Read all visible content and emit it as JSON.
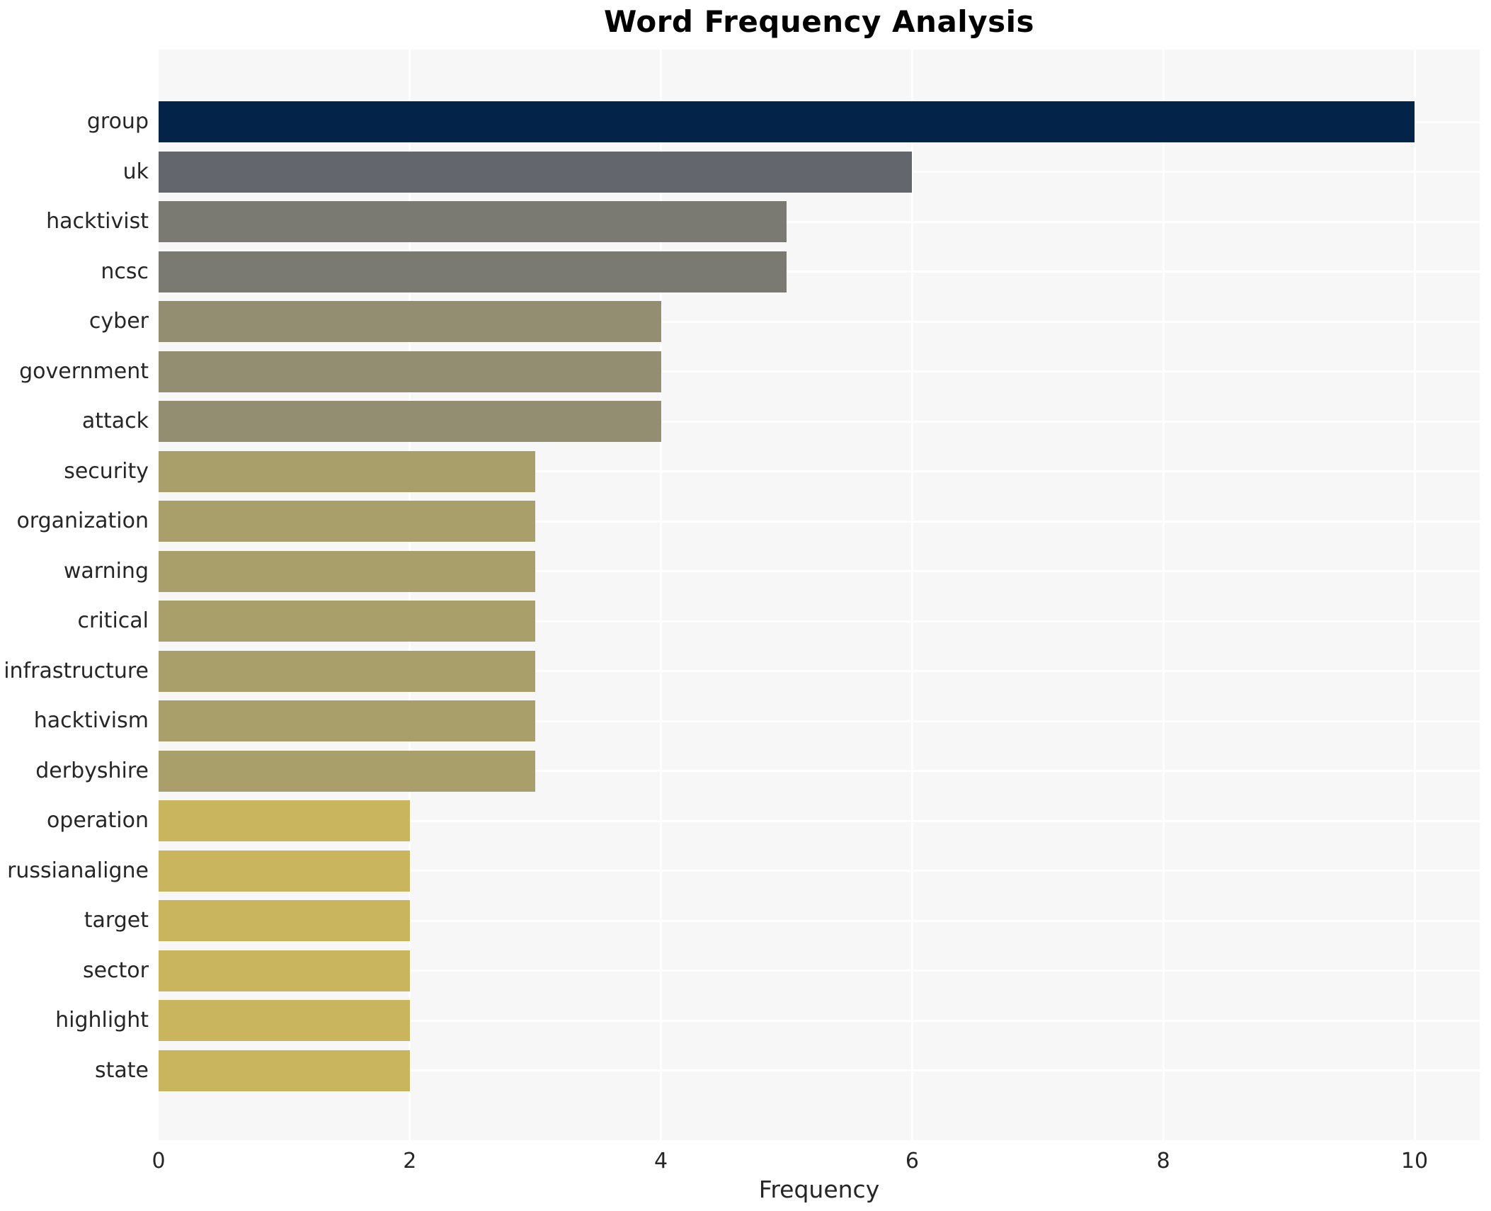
{
  "chart_data": {
    "type": "bar",
    "orientation": "horizontal",
    "title": "Word Frequency Analysis",
    "xlabel": "Frequency",
    "ylabel": "",
    "xlim": [
      0,
      10.52
    ],
    "xticks": [
      0,
      2,
      4,
      6,
      8,
      10
    ],
    "grid": "on",
    "legend": "none",
    "plot_background": "#f7f7f8",
    "grid_color": "#ffffff",
    "categories": [
      "group",
      "uk",
      "hacktivist",
      "ncsc",
      "cyber",
      "government",
      "attack",
      "security",
      "organization",
      "warning",
      "critical",
      "infrastructure",
      "hacktivism",
      "derbyshire",
      "operation",
      "russianaligne",
      "target",
      "sector",
      "highlight",
      "state"
    ],
    "values": [
      10,
      6,
      5,
      5,
      4,
      4,
      4,
      3,
      3,
      3,
      3,
      3,
      3,
      3,
      2,
      2,
      2,
      2,
      2,
      2
    ],
    "bar_colors": [
      "#032349",
      "#64666e",
      "#7b7a72",
      "#7b7a72",
      "#938d72",
      "#938d72",
      "#938d72",
      "#a99f6a",
      "#a99f6a",
      "#a99f6a",
      "#a99f6a",
      "#a99f6a",
      "#a99f6a",
      "#a99f6a",
      "#c8b55e",
      "#c8b55e",
      "#c8b55e",
      "#c8b55e",
      "#c8b55e",
      "#c8b55e"
    ]
  }
}
